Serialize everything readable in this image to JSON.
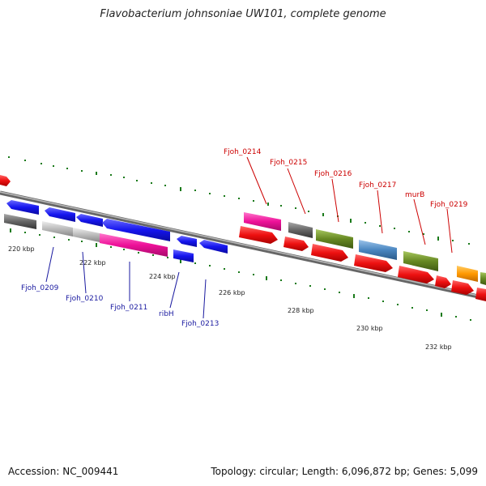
{
  "header": {
    "title": "Flavobacterium johnsoniae UW101, complete genome"
  },
  "footer": {
    "accession": "Accession: NC_009441",
    "summary": "Topology: circular; Length: 6,096,872 bp; Genes: 5,099"
  },
  "colors": {
    "backbone": "#888888",
    "tick_mark": "#1a7a1a",
    "label_top": "#cc0000",
    "label_bottom": "#1a1aa0",
    "gene_red": "#ee1111",
    "gene_blue": "#1515ee",
    "gene_magenta": "#ee1199",
    "gene_grey": "#666666",
    "gene_light_grey": "#bbbbbb",
    "gene_olive": "#668822",
    "gene_steel": "#4a86c0",
    "gene_orange": "#ff9900"
  },
  "scale": {
    "ticks": [
      {
        "label": "220 kbp"
      },
      {
        "label": "222 kbp"
      },
      {
        "label": "224 kbp"
      },
      {
        "label": "226 kbp"
      },
      {
        "label": "228 kbp"
      },
      {
        "label": "230 kbp"
      },
      {
        "label": "232 kbp"
      }
    ]
  },
  "gene_labels": {
    "top": [
      "Fjoh_0214",
      "Fjoh_0215",
      "Fjoh_0216",
      "Fjoh_0217",
      "murB",
      "Fjoh_0219"
    ],
    "bottom": [
      "Fjoh_0209",
      "Fjoh_0210",
      "Fjoh_0211",
      "ribH",
      "Fjoh_0213"
    ]
  }
}
